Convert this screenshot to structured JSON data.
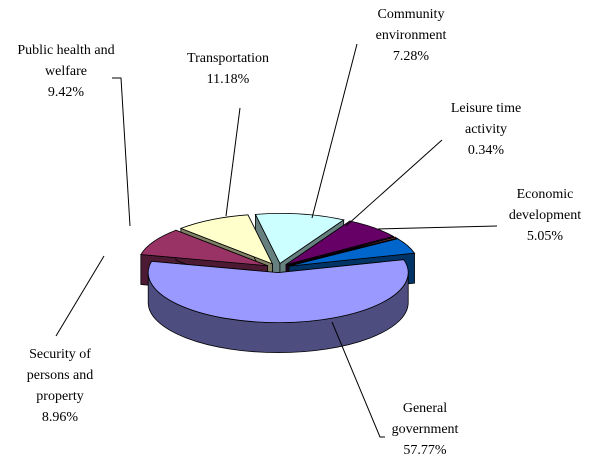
{
  "chart_data": {
    "type": "pie",
    "categories": [
      "General government",
      "Security of persons and property",
      "Public health and welfare",
      "Transportation",
      "Community environment",
      "Leisure time activity",
      "Economic development"
    ],
    "values": [
      57.77,
      8.96,
      9.42,
      11.18,
      7.28,
      0.34,
      5.05
    ],
    "value_labels": [
      "57.77%",
      "8.96%",
      "9.42%",
      "11.18%",
      "7.28%",
      "0.34%",
      "5.05%"
    ],
    "colors": [
      "#9999ff",
      "#993366",
      "#ffffcc",
      "#ccffff",
      "#660066",
      "#ff8080",
      "#0066cc"
    ]
  }
}
